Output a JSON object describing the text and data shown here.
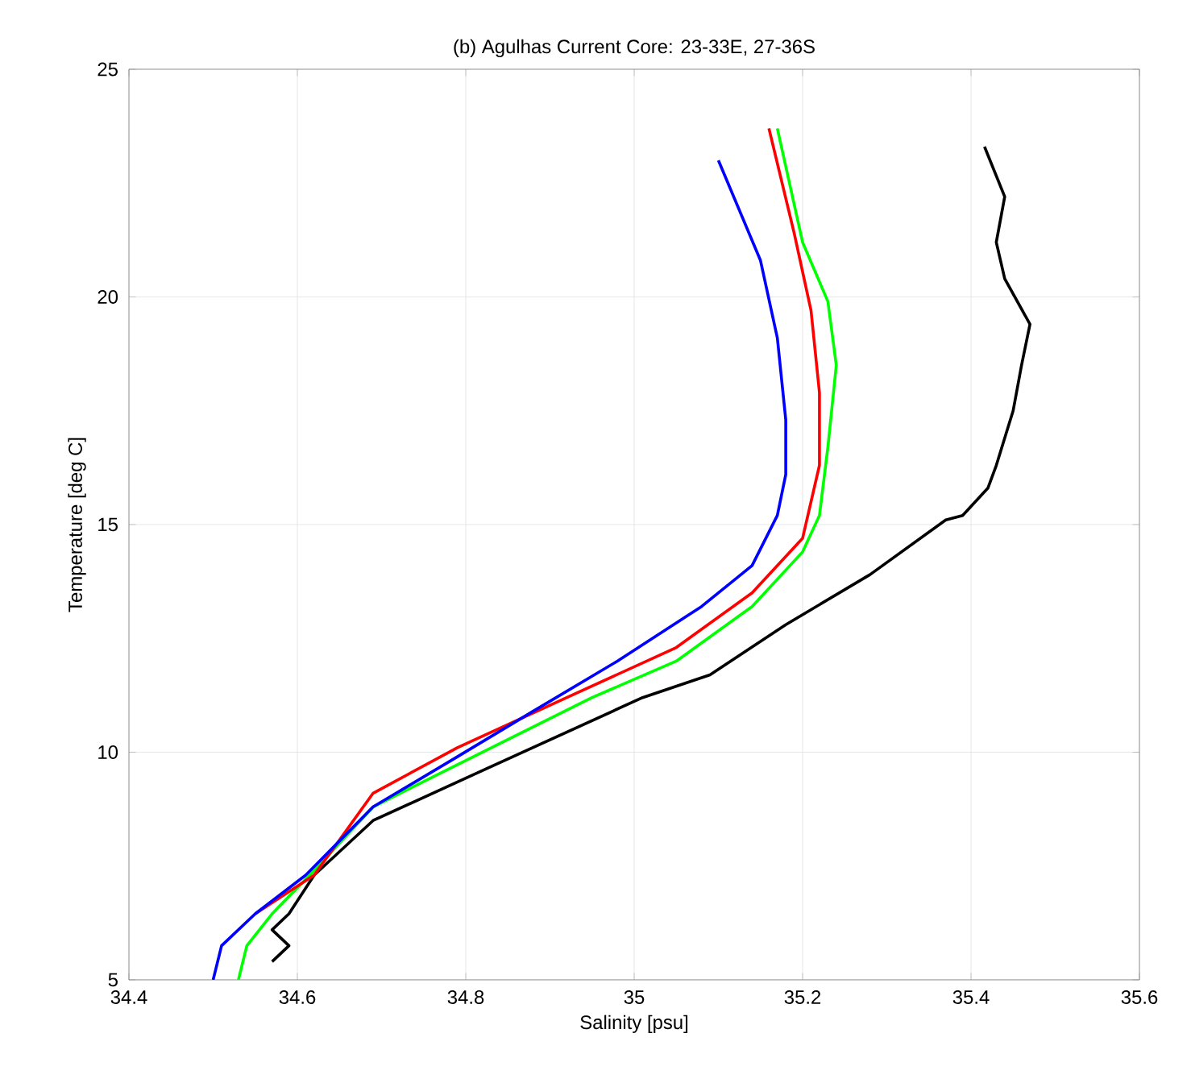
{
  "chart_data": {
    "type": "line",
    "title": "(b) Agulhas Current Core: 23-33E, 27-36S",
    "xlabel": "Salinity [psu]",
    "ylabel": "Temperature [deg C]",
    "xlim": [
      34.4,
      35.6
    ],
    "ylim": [
      5,
      25
    ],
    "xticks": [
      34.4,
      34.6,
      34.8,
      35,
      35.2,
      35.4,
      35.6
    ],
    "yticks": [
      5,
      10,
      15,
      20,
      25
    ],
    "grid": true,
    "line_style": "solid",
    "marker": "none",
    "series": [
      {
        "color": "#000000",
        "x": [
          34.57,
          34.59,
          34.57,
          34.59,
          34.62,
          34.69,
          34.82,
          35.01,
          35.09,
          35.18,
          35.28,
          35.37,
          35.39,
          35.42,
          35.43,
          35.45,
          35.46,
          35.47,
          35.44,
          35.43,
          35.44,
          35.416
        ],
        "values": [
          5.4,
          5.75,
          6.1,
          6.45,
          7.3,
          8.5,
          9.6,
          11.2,
          11.7,
          12.8,
          13.9,
          15.1,
          15.2,
          15.8,
          16.3,
          17.5,
          18.5,
          19.4,
          20.4,
          21.2,
          22.2,
          23.3
        ]
      },
      {
        "color": "#00ff00",
        "x": [
          34.53,
          34.54,
          34.57,
          34.62,
          34.69,
          34.82,
          34.95,
          35.05,
          35.14,
          35.2,
          35.22,
          35.23,
          35.24,
          35.23,
          35.2,
          35.17
        ],
        "values": [
          5.0,
          5.75,
          6.45,
          7.4,
          8.8,
          10.0,
          11.2,
          12.0,
          13.2,
          14.4,
          15.2,
          16.7,
          18.5,
          19.9,
          21.2,
          23.7
        ]
      },
      {
        "color": "#ff0000",
        "x": [
          34.55,
          34.62,
          34.69,
          34.79,
          34.92,
          35.05,
          35.14,
          35.2,
          35.22,
          35.22,
          35.21,
          35.19,
          35.16
        ],
        "values": [
          6.45,
          7.3,
          9.1,
          10.1,
          11.2,
          12.3,
          13.5,
          14.7,
          16.3,
          17.9,
          19.7,
          21.4,
          23.7
        ]
      },
      {
        "color": "#0000ff",
        "x": [
          34.5,
          34.51,
          34.55,
          34.61,
          34.69,
          34.79,
          34.88,
          34.98,
          35.08,
          35.14,
          35.17,
          35.18,
          35.18,
          35.17,
          35.15,
          35.1
        ],
        "values": [
          5.0,
          5.75,
          6.45,
          7.3,
          8.8,
          9.9,
          10.9,
          12.0,
          13.2,
          14.1,
          15.2,
          16.1,
          17.3,
          19.1,
          20.8,
          23.0
        ]
      }
    ]
  }
}
